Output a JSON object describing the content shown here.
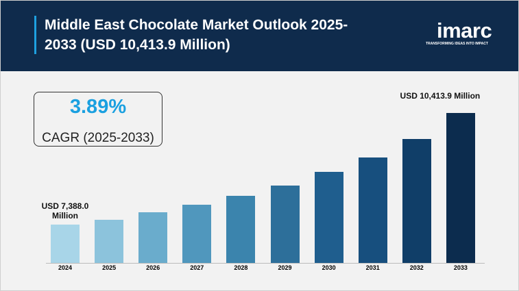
{
  "header": {
    "title_lines": [
      "Middle East Chocolate Market Outlook 2025-",
      "2033 (USD 10,413.9 Million)"
    ],
    "logo": "imarc",
    "tagline": "TRANSFORMING IDEAS INTO IMPACT"
  },
  "cagr": {
    "value": "3.89%",
    "label": "CAGR (2025-2033)"
  },
  "chart_data": {
    "type": "bar",
    "categories": [
      "2024",
      "2025",
      "2026",
      "2027",
      "2028",
      "2029",
      "2030",
      "2031",
      "2032",
      "2033"
    ],
    "values": [
      7388.0,
      7518,
      7722,
      7926,
      8168,
      8446,
      8817,
      9207,
      9709,
      10413.9
    ],
    "value_labels": [
      "USD 7,388.0 Million",
      null,
      null,
      null,
      null,
      null,
      null,
      null,
      null,
      "USD 10,413.9 Million"
    ],
    "colors": [
      "#a8d5e8",
      "#8cc3dc",
      "#6aaccc",
      "#5097bd",
      "#3b84ad",
      "#2d6f9a",
      "#1f5e8e",
      "#174f7e",
      "#103e68",
      "#0c2c4e"
    ],
    "ylim": [
      6350,
      11050
    ]
  }
}
